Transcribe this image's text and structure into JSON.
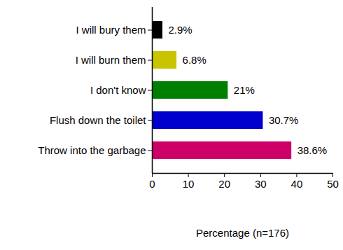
{
  "chart_data": {
    "type": "bar",
    "orientation": "horizontal",
    "categories": [
      "I will bury them",
      "I will burn them",
      "I don't know",
      "Flush down the toilet",
      "Throw into the garbage"
    ],
    "values": [
      2.9,
      6.8,
      21,
      30.7,
      38.6
    ],
    "value_labels": [
      "2.9%",
      "6.8%",
      "21%",
      "30.7%",
      "38.6%"
    ],
    "colors": [
      "#000000",
      "#c8c400",
      "#008000",
      "#0000cc",
      "#cc0066"
    ],
    "xlabel": "Percentage (n=176)",
    "xlim": [
      0,
      50
    ],
    "xticks": [
      0,
      10,
      20,
      30,
      40,
      50
    ],
    "data_labels": true,
    "grid": false
  }
}
